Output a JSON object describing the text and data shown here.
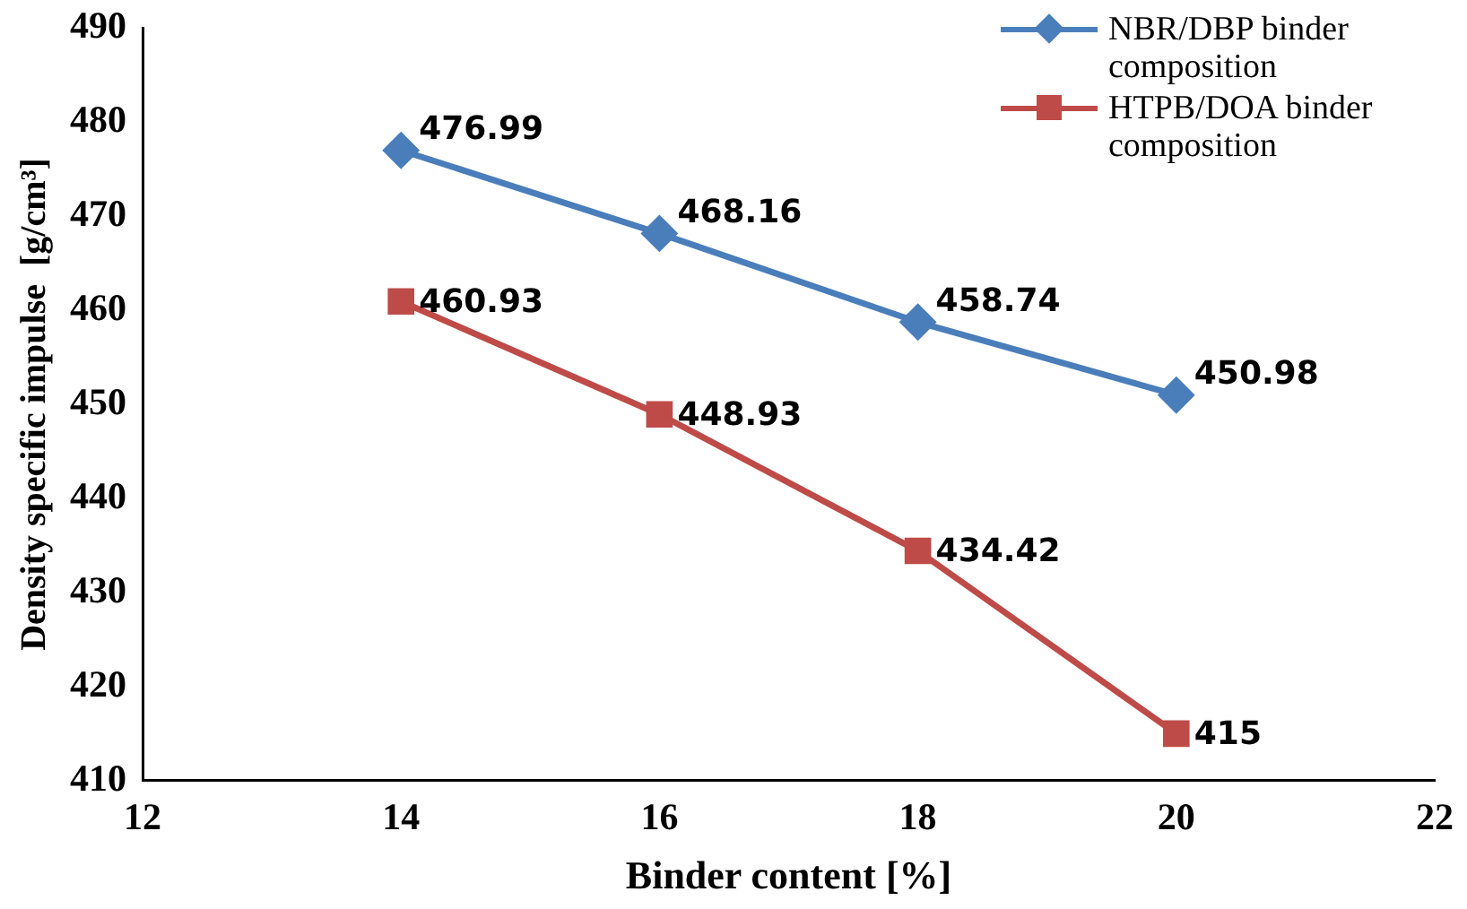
{
  "chart_data": {
    "type": "line",
    "xlabel": "Binder content [%]",
    "ylabel": "Density specific impulse  [g/cm³]",
    "x": [
      14,
      16,
      18,
      20
    ],
    "series": [
      {
        "name": "NBR/DBP binder composition",
        "color": "#4a7ebb",
        "marker": "diamond",
        "values": [
          476.99,
          468.16,
          458.74,
          450.98
        ]
      },
      {
        "name": "HTPB/DOA binder composition",
        "color": "#be4b48",
        "marker": "square",
        "values": [
          460.93,
          448.93,
          434.42,
          415
        ]
      }
    ],
    "xlim": [
      12,
      22
    ],
    "xticks": [
      12,
      14,
      16,
      18,
      20,
      22
    ],
    "ylim": [
      410,
      490
    ],
    "yticks": [
      410,
      420,
      430,
      440,
      450,
      460,
      470,
      480,
      490
    ],
    "grid": false,
    "legend": "top right",
    "data_labels": true,
    "line_style": "solid"
  }
}
